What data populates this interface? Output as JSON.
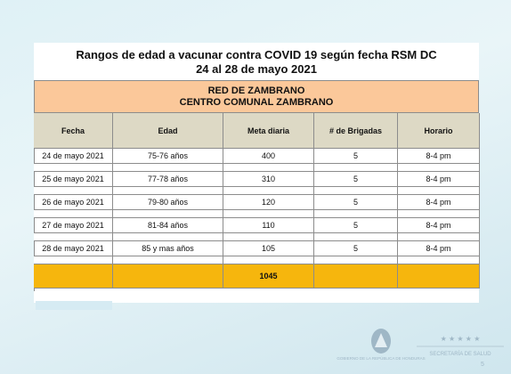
{
  "header": {
    "title": "Rangos de edad a vacunar contra COVID  19 según fecha RSM DC",
    "subtitle": "24 al 28 de mayo 2021",
    "network": "RED DE ZAMBRANO",
    "center": "CENTRO COMUNAL ZAMBRANO"
  },
  "table": {
    "columns": [
      "Fecha",
      "Edad",
      "Meta diaria",
      "# de Brigadas",
      "Horario"
    ],
    "rows": [
      [
        "24 de mayo 2021",
        "75-76 años",
        400,
        5,
        "8-4 pm"
      ],
      [
        "25 de mayo 2021",
        "77-78 años",
        310,
        5,
        "8-4 pm"
      ],
      [
        "26 de mayo 2021",
        "79-80 años",
        120,
        5,
        "8-4 pm"
      ],
      [
        "27 de mayo 2021",
        "81-84 años",
        110,
        5,
        "8-4 pm"
      ],
      [
        "28 de mayo 2021",
        "85 y mas años",
        105,
        5,
        "8-4 pm"
      ]
    ],
    "total": 1045
  },
  "footer": {
    "government": "GOBIERNO DE LA REPÚBLICA DE HONDURAS",
    "ministry": "SECRETARÍA DE SALUD",
    "page": "5"
  }
}
